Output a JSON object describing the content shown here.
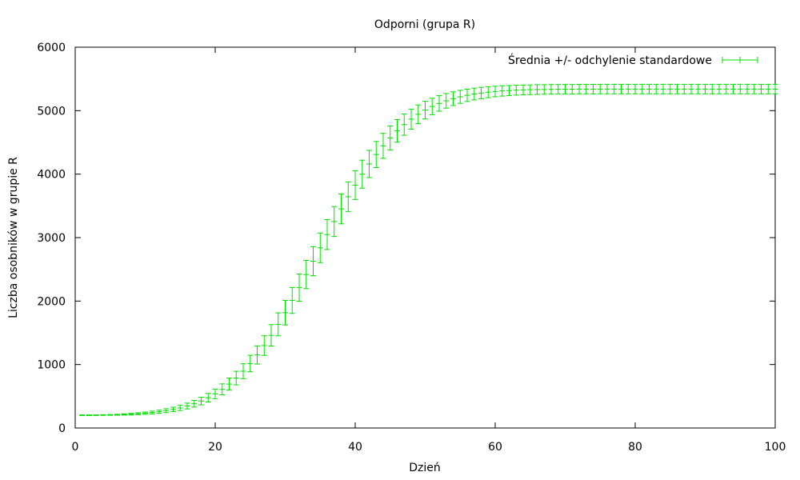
{
  "chart_data": {
    "type": "line",
    "title": "Odporni (grupa R)",
    "xlabel": "Dzień",
    "ylabel": "Liczba osobników w grupie R",
    "xlim": [
      0,
      100
    ],
    "ylim": [
      0,
      6000
    ],
    "x_ticks": [
      0,
      20,
      40,
      60,
      80,
      100
    ],
    "y_ticks": [
      0,
      1000,
      2000,
      3000,
      4000,
      5000,
      6000
    ],
    "grid": false,
    "legend_position": "top-right",
    "series_color": "#00e000",
    "series": [
      {
        "name": "Średnia +/- odchylenie standardowe",
        "style": "errorbars",
        "x": [
          1,
          2,
          3,
          4,
          5,
          6,
          7,
          8,
          9,
          10,
          11,
          12,
          13,
          14,
          15,
          16,
          17,
          18,
          19,
          20,
          21,
          22,
          23,
          24,
          25,
          26,
          27,
          28,
          29,
          30,
          31,
          32,
          33,
          34,
          35,
          36,
          37,
          38,
          39,
          40,
          41,
          42,
          43,
          44,
          45,
          46,
          47,
          48,
          49,
          50,
          51,
          52,
          53,
          54,
          55,
          56,
          57,
          58,
          59,
          60,
          61,
          62,
          63,
          64,
          65,
          66,
          67,
          68,
          69,
          70,
          71,
          72,
          73,
          74,
          75,
          76,
          77,
          78,
          79,
          80,
          81,
          82,
          83,
          84,
          85,
          86,
          87,
          88,
          89,
          90,
          91,
          92,
          93,
          94,
          95,
          96,
          97,
          98,
          99,
          100
        ],
        "y": [
          201,
          201,
          202,
          204,
          206,
          209,
          213,
          218,
          225,
          233,
          244,
          257,
          273,
          292,
          316,
          346,
          382,
          425,
          477,
          538,
          609,
          692,
          787,
          895,
          1016,
          1151,
          1299,
          1460,
          1633,
          1817,
          2010,
          2211,
          2418,
          2628,
          2839,
          3048,
          3253,
          3452,
          3644,
          3827,
          3999,
          4160,
          4309,
          4446,
          4570,
          4681,
          4780,
          4867,
          4943,
          5009,
          5066,
          5114,
          5155,
          5189,
          5218,
          5242,
          5262,
          5278,
          5291,
          5302,
          5311,
          5317,
          5323,
          5327,
          5330,
          5333,
          5334,
          5336,
          5337,
          5338,
          5338,
          5339,
          5339,
          5339,
          5340,
          5340,
          5340,
          5340,
          5340,
          5340,
          5340,
          5340,
          5340,
          5340,
          5340,
          5340,
          5340,
          5340,
          5340,
          5340,
          5340,
          5340,
          5340,
          5340,
          5340,
          5340,
          5340,
          5340,
          5340,
          5340
        ],
        "err": [
          5,
          5,
          5,
          5,
          6,
          8,
          10,
          13,
          15,
          18,
          22,
          25,
          30,
          35,
          40,
          46,
          53,
          60,
          68,
          76,
          86,
          96,
          107,
          118,
          130,
          143,
          155,
          168,
          181,
          193,
          204,
          214,
          222,
          229,
          233,
          236,
          236,
          235,
          232,
          227,
          221,
          214,
          206,
          197,
          188,
          178,
          168,
          158,
          148,
          139,
          130,
          122,
          115,
          108,
          102,
          97,
          93,
          89,
          86,
          83,
          81,
          79,
          78,
          77,
          76,
          76,
          75,
          75,
          75,
          75,
          75,
          75,
          75,
          75,
          75,
          75,
          75,
          75,
          75,
          75,
          75,
          75,
          75,
          75,
          75,
          75,
          75,
          75,
          75,
          75,
          75,
          75,
          75,
          75,
          75,
          75,
          75,
          75,
          75,
          75
        ]
      }
    ]
  }
}
